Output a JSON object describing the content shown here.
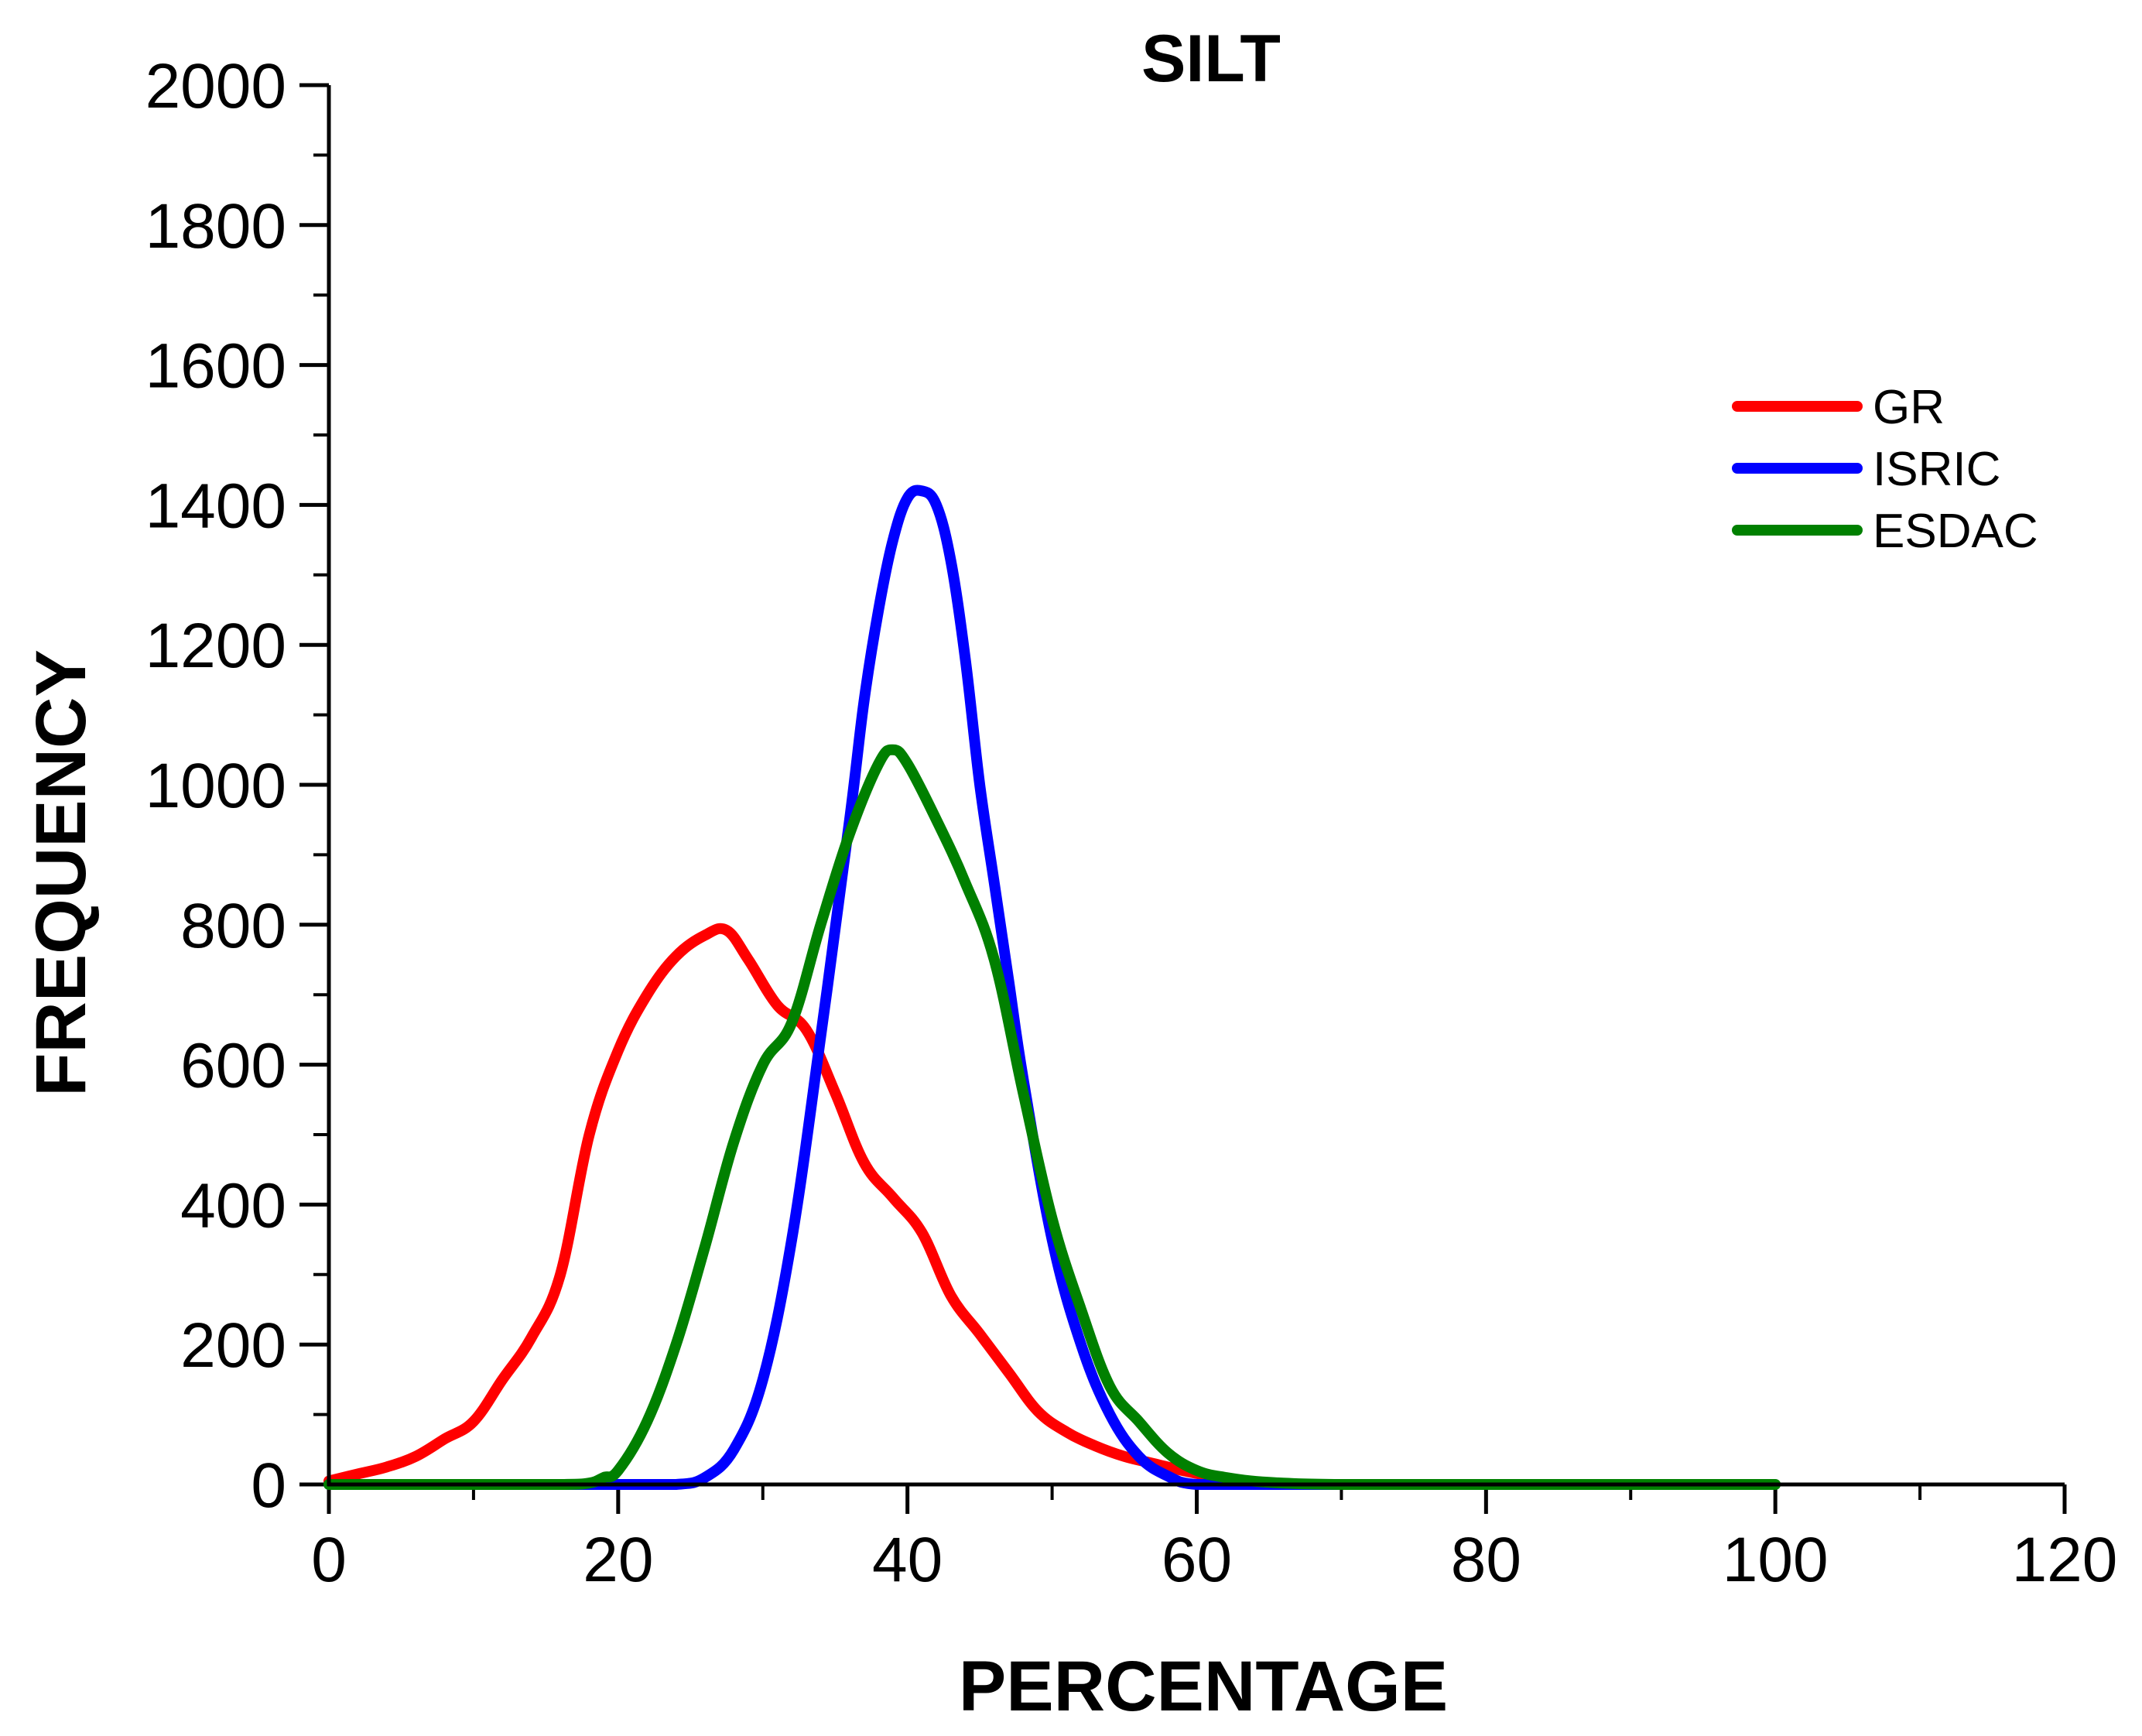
{
  "chart_data": {
    "type": "line",
    "title": "SILT",
    "xlabel": "PERCENTAGE",
    "ylabel": "FREQUENCY",
    "xlim": [
      0,
      120
    ],
    "ylim": [
      0,
      2000
    ],
    "x_ticks": [
      0,
      20,
      40,
      60,
      80,
      100,
      120
    ],
    "y_ticks": [
      0,
      200,
      400,
      600,
      800,
      1000,
      1200,
      1400,
      1600,
      1800,
      2000
    ],
    "x_tick_labels": [
      "0",
      "20",
      "40",
      "60",
      "80",
      "100",
      "120"
    ],
    "y_tick_labels": [
      "0",
      "200",
      "400",
      "600",
      "800",
      "1000",
      "1200",
      "1400",
      "1600",
      "1800",
      "2000"
    ],
    "legend_position": "top-right",
    "series": [
      {
        "name": "GR",
        "color": "#ff0000",
        "x": [
          0,
          2,
          4,
          6,
          8,
          10,
          12,
          14,
          16,
          18,
          20,
          22,
          24,
          26,
          27.5,
          29,
          31,
          33,
          35,
          37,
          39,
          41,
          43,
          45,
          47,
          49,
          51,
          53,
          55,
          57,
          59,
          61,
          63,
          65,
          67,
          70
        ],
        "y": [
          5,
          15,
          25,
          40,
          65,
          90,
          150,
          210,
          300,
          500,
          620,
          700,
          755,
          785,
          792,
          750,
          685,
          650,
          560,
          460,
          410,
          360,
          270,
          215,
          160,
          105,
          75,
          55,
          40,
          30,
          20,
          12,
          6,
          2,
          0,
          0
        ]
      },
      {
        "name": "ISRIC",
        "color": "#0000ff",
        "x": [
          0,
          10,
          20,
          24,
          26,
          28,
          30,
          32,
          34,
          36,
          37,
          38,
          39,
          40,
          41,
          42,
          43,
          44,
          45,
          46,
          47,
          48,
          50,
          52,
          54,
          56,
          58,
          60,
          65,
          70
        ],
        "y": [
          0,
          0,
          0,
          0,
          10,
          50,
          150,
          350,
          640,
          950,
          1120,
          1250,
          1350,
          1410,
          1420,
          1400,
          1320,
          1180,
          1000,
          860,
          720,
          580,
          350,
          200,
          100,
          40,
          12,
          0,
          0,
          0
        ]
      },
      {
        "name": "ESDAC",
        "color": "#008000",
        "x": [
          0,
          10,
          16,
          18,
          19,
          20,
          22,
          24,
          26,
          28,
          30,
          32,
          34,
          36,
          38,
          39,
          40,
          42,
          44,
          46,
          48,
          50,
          52,
          54,
          56,
          58,
          60,
          62,
          65,
          70,
          80,
          90,
          100
        ],
        "y": [
          0,
          0,
          0,
          2,
          10,
          20,
          90,
          200,
          340,
          490,
          600,
          660,
          800,
          930,
          1030,
          1050,
          1030,
          950,
          860,
          750,
          560,
          380,
          250,
          140,
          90,
          45,
          20,
          10,
          3,
          0,
          0,
          0,
          0
        ]
      }
    ]
  }
}
